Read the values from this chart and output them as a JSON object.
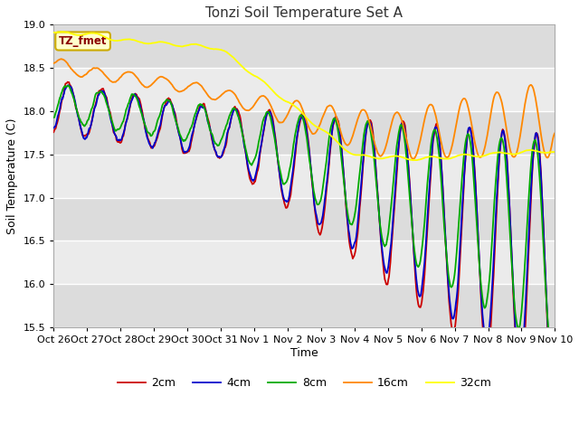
{
  "title": "Tonzi Soil Temperature Set A",
  "xlabel": "Time",
  "ylabel": "Soil Temperature (C)",
  "ylim": [
    15.5,
    19.0
  ],
  "annotation_text": "TZ_fmet",
  "series_colors": [
    "#CC0000",
    "#0000CC",
    "#00AA00",
    "#FF8800",
    "#FFFF00"
  ],
  "series_labels": [
    "2cm",
    "4cm",
    "8cm",
    "16cm",
    "32cm"
  ],
  "tick_labels": [
    "Oct 26",
    "Oct 27",
    "Oct 28",
    "Oct 29",
    "Oct 30",
    "Oct 31",
    "Nov 1",
    "Nov 2",
    "Nov 3",
    "Nov 4",
    "Nov 5",
    "Nov 6",
    "Nov 7",
    "Nov 8",
    "Nov 9",
    "Nov 10"
  ],
  "n_points": 720,
  "days": 15
}
